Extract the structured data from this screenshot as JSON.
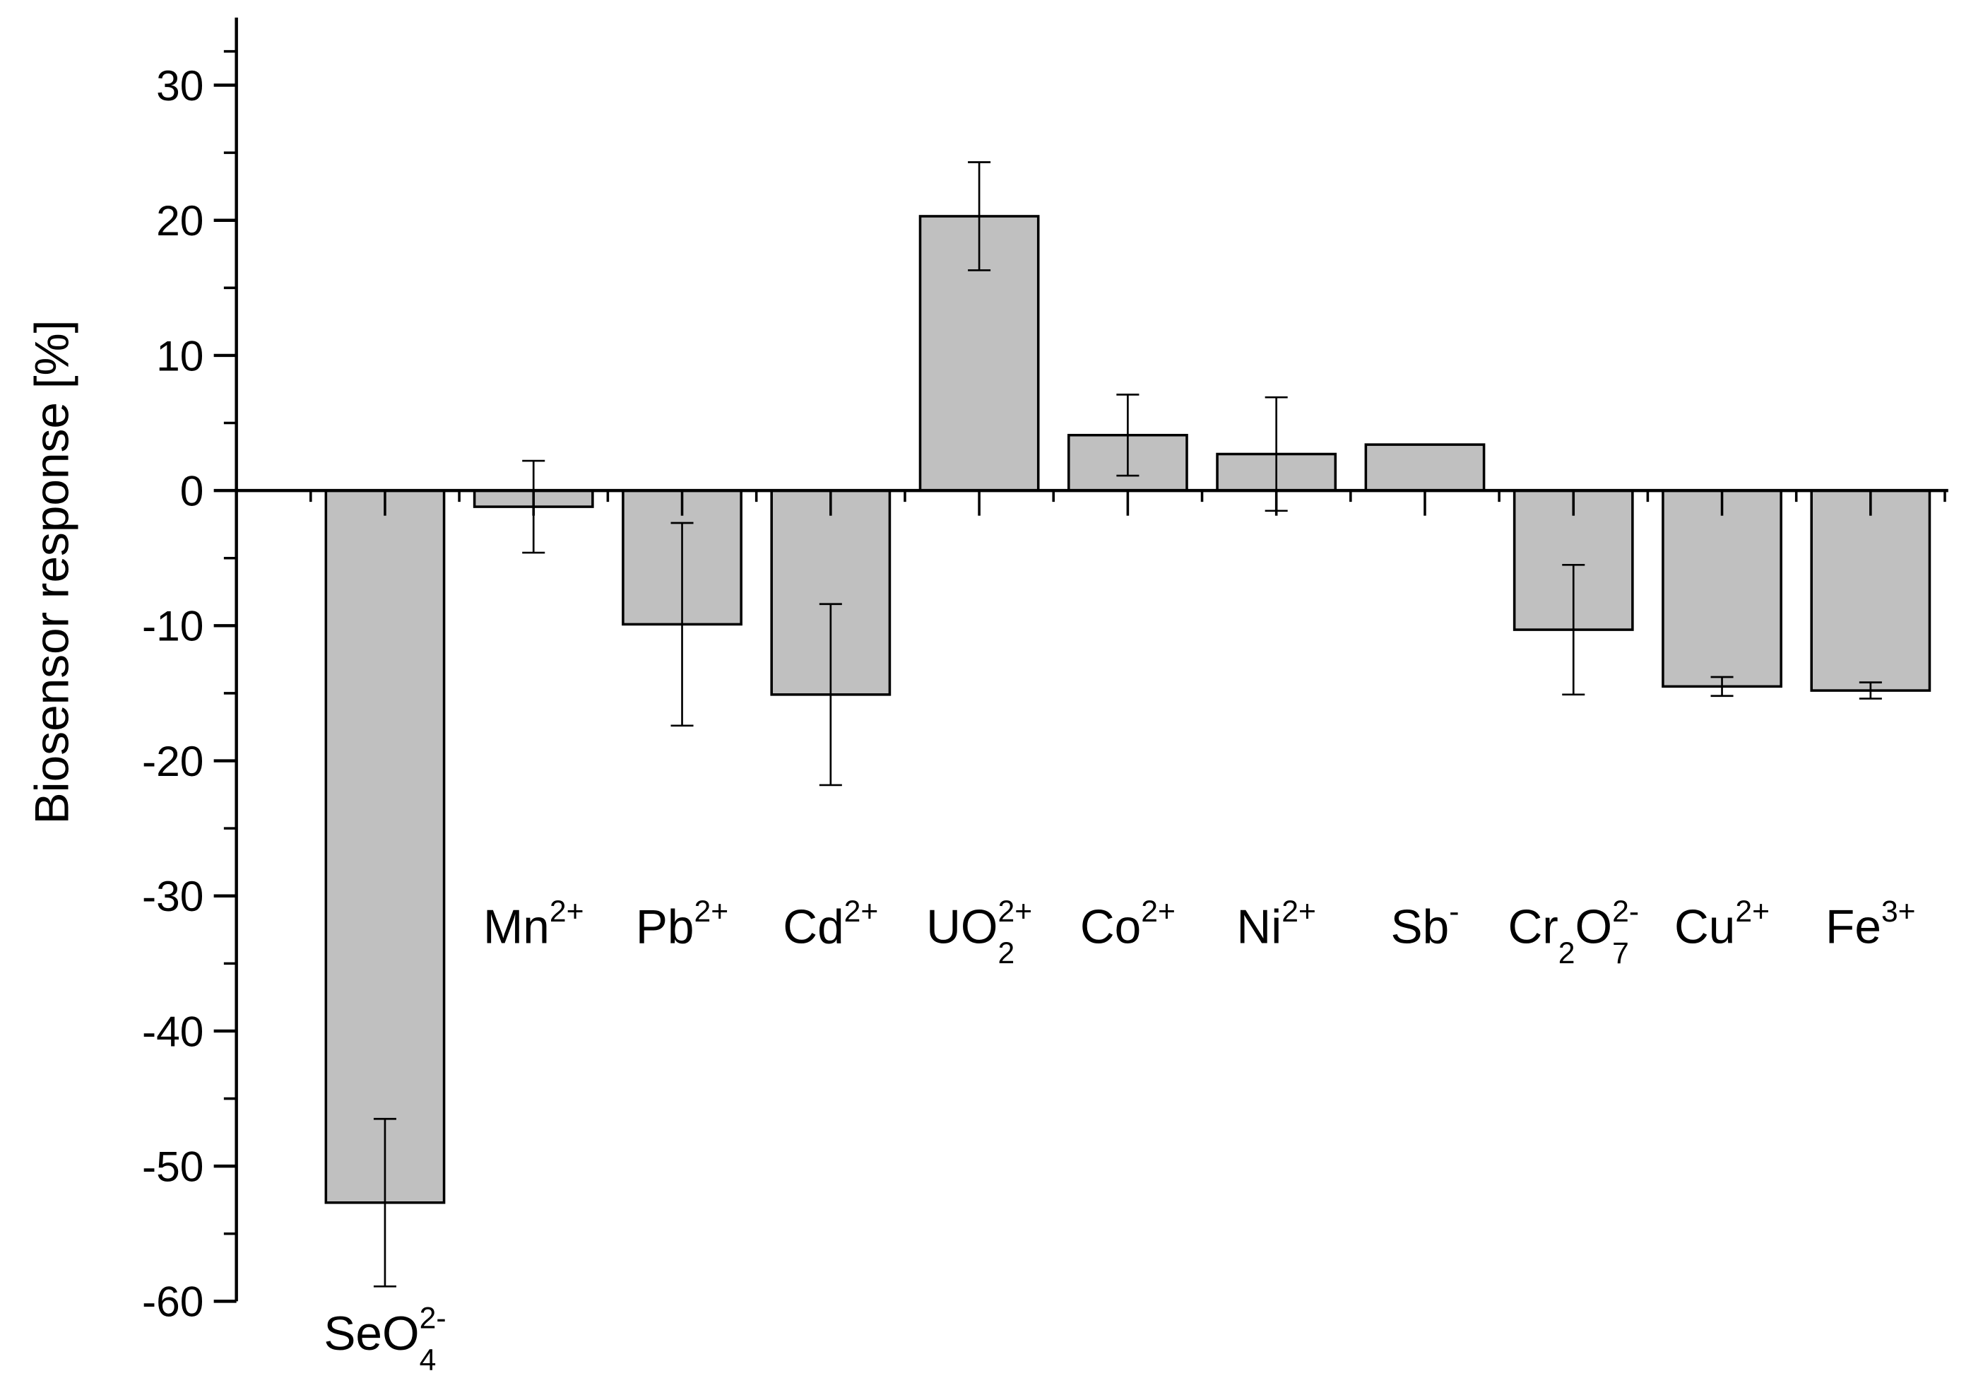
{
  "chart_data": {
    "type": "bar",
    "y_label": "Biosensor response [%]",
    "categories": [
      [
        {
          "text": "SeO"
        },
        {
          "sub": "4",
          "sup": "2-"
        }
      ],
      [
        {
          "text": "Mn"
        },
        {
          "sup": "2+"
        }
      ],
      [
        {
          "text": "Pb"
        },
        {
          "sup": "2+"
        }
      ],
      [
        {
          "text": "Cd"
        },
        {
          "sup": "2+"
        }
      ],
      [
        {
          "text": "UO"
        },
        {
          "sub": "2",
          "sup": "2+"
        }
      ],
      [
        {
          "text": "Co"
        },
        {
          "sup": "2+"
        }
      ],
      [
        {
          "text": "Ni"
        },
        {
          "sup": "2+"
        }
      ],
      [
        {
          "text": "Sb"
        },
        {
          "sup": "-"
        }
      ],
      [
        {
          "text": "Cr"
        },
        {
          "sub": "2"
        },
        {
          "text": "O"
        },
        {
          "sub": "7",
          "sup": "2-"
        }
      ],
      [
        {
          "text": "Cu"
        },
        {
          "sup": "2+"
        }
      ],
      [
        {
          "text": "Fe"
        },
        {
          "sup": "3+"
        }
      ]
    ],
    "values": [
      -52.7,
      -1.2,
      -9.9,
      -15.1,
      20.3,
      4.1,
      2.7,
      3.4,
      -10.3,
      -14.5,
      -14.8
    ],
    "errors": [
      6.2,
      3.4,
      7.5,
      6.7,
      4.0,
      3.0,
      4.2,
      null,
      4.8,
      0.7,
      0.6
    ],
    "color": "#c0c0c0",
    "ylim": [
      -60,
      35
    ],
    "yticks": [
      -60,
      -50,
      -40,
      -30,
      -20,
      -10,
      0,
      10,
      20,
      30
    ]
  }
}
